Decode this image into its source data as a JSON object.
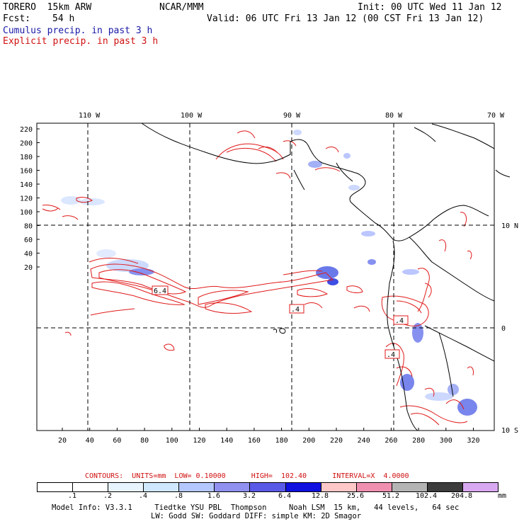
{
  "header": {
    "model": "TORERO  15km ARW",
    "org": "NCAR/MMM",
    "init": "Init: 00 UTC Wed 11 Jan 12",
    "fcst_label": "Fcst:",
    "fcst_value": "54 h",
    "valid": "Valid: 06 UTC Fri 13 Jan 12 (00 CST Fri 13 Jan 12)",
    "field1": "Cumulus precip. in past 3 h",
    "field2": "Explicit precip. in past 3 h"
  },
  "map": {
    "lon_labels": [
      "110 W",
      "100 W",
      "90 W",
      "80 W",
      "70 W"
    ],
    "lat_labels": [
      "10 N",
      "0",
      "10 S"
    ],
    "y_ticks": [
      "220",
      "200",
      "180",
      "160",
      "140",
      "120",
      "100",
      "80",
      "60",
      "40",
      "20"
    ],
    "x_ticks": [
      "20",
      "40",
      "60",
      "80",
      "100",
      "120",
      "140",
      "160",
      "180",
      "200",
      "220",
      "240",
      "260",
      "280",
      "300",
      "320"
    ],
    "contour_labels": [
      "6.4",
      ".4",
      ".4",
      ".4"
    ]
  },
  "contours_line": "CONTOURS:  UNITS=mm  LOW= 0.10000      HIGH=  102.40      INTERVAL=X  4.0000",
  "colorbar": {
    "labels": [
      ".1",
      ".2",
      ".4",
      ".8",
      "1.6",
      "3.2",
      "6.4",
      "12.8",
      "25.6",
      "51.2",
      "102.4",
      "204.8"
    ],
    "unit": "mm",
    "colors": [
      "#ffffff",
      "#ffffff",
      "#e8f4ff",
      "#d0e8ff",
      "#b4c8ff",
      "#9090f0",
      "#5a5ae8",
      "#1010e0",
      "#ffc8c8",
      "#f090b0",
      "#b4b4b4",
      "#3c3c3c",
      "#d8a8f0"
    ]
  },
  "footer": {
    "line1": "Model Info: V3.3.1     Tiedtke YSU PBL  Thompson     Noah LSM  15 km,   44 levels,   64 sec",
    "line2": "LW: Godd SW: Goddard DIFF: simple KM: 2D Smagor"
  }
}
